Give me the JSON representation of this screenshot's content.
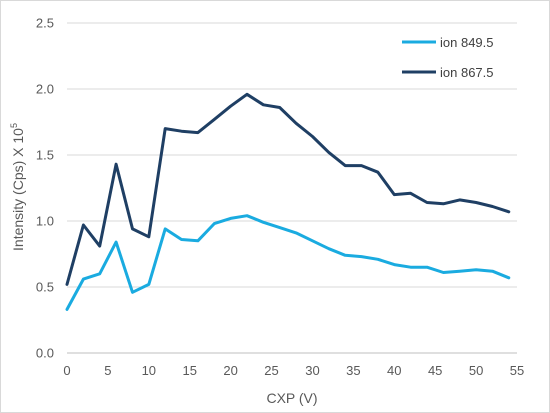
{
  "chart_data": {
    "type": "line",
    "xlabel": "CXP (V)",
    "ylabel": {
      "main": "Intensity (Cps) X 10",
      "sup": "5"
    },
    "xlim": [
      0,
      55
    ],
    "ylim": [
      0,
      2.5
    ],
    "x_ticks": [
      "0",
      "5",
      "10",
      "15",
      "20",
      "25",
      "30",
      "35",
      "40",
      "45",
      "50",
      "55"
    ],
    "y_ticks": [
      "0.0",
      "0.5",
      "1.0",
      "1.5",
      "2.0",
      "2.5"
    ],
    "grid": "horizontal",
    "legend_position": "top-right",
    "x": [
      0,
      2,
      4,
      6,
      8,
      10,
      12,
      14,
      16,
      18,
      20,
      22,
      24,
      26,
      28,
      30,
      32,
      34,
      36,
      38,
      40,
      42,
      44,
      46,
      48,
      50,
      52,
      54
    ],
    "series": [
      {
        "name": "ion 849.5",
        "color": "#1aabe0",
        "values": [
          0.33,
          0.56,
          0.6,
          0.84,
          0.46,
          0.52,
          0.94,
          0.86,
          0.85,
          0.98,
          1.02,
          1.04,
          0.99,
          0.95,
          0.91,
          0.85,
          0.79,
          0.74,
          0.73,
          0.71,
          0.67,
          0.65,
          0.65,
          0.61,
          0.62,
          0.63,
          0.62,
          0.57
        ]
      },
      {
        "name": "ion 867.5",
        "color": "#1f3f64",
        "values": [
          0.52,
          0.97,
          0.81,
          1.43,
          0.94,
          0.88,
          1.7,
          1.68,
          1.67,
          1.77,
          1.87,
          1.96,
          1.88,
          1.86,
          1.74,
          1.64,
          1.52,
          1.42,
          1.42,
          1.37,
          1.2,
          1.21,
          1.14,
          1.13,
          1.16,
          1.14,
          1.11,
          1.07
        ]
      }
    ]
  }
}
